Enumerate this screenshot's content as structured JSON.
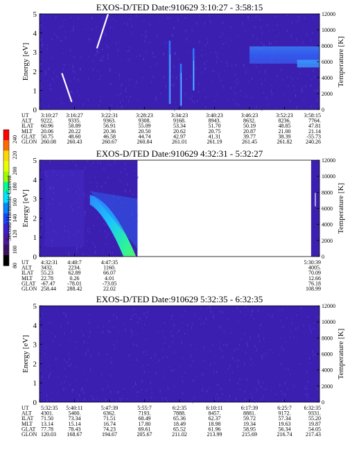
{
  "colorbar": {
    "label": "Second Harmonic Current",
    "ticks": [
      "240",
      "220",
      "200",
      "180",
      "160",
      "140",
      "120",
      "100",
      "80"
    ],
    "colors": [
      "#ff0000",
      "#ff6a00",
      "#ffd700",
      "#e8ff00",
      "#9cff00",
      "#00ff9a",
      "#00e5ff",
      "#0088ff",
      "#1a44ff",
      "#3a20d0",
      "#4a18a0",
      "#3a1060",
      "#000000"
    ]
  },
  "theme": {
    "background": "#3b1fb0",
    "noise": "#5a3ee0",
    "white_trace": "#ffffff"
  },
  "chart_data": [
    {
      "type": "heatmap",
      "title": "EXOS-D/TED   Date:910629  3:10:27 - 3:58:15",
      "ylabel": "Energy [eV]",
      "y2label": "Temperature [K]",
      "ylim": [
        0,
        5
      ],
      "y2lim": [
        0,
        12000
      ],
      "yticks": [
        "0",
        "1",
        "2",
        "3",
        "4",
        "5"
      ],
      "y2ticks": [
        "0",
        "2000",
        "4000",
        "6000",
        "8000",
        "10000",
        "12000"
      ],
      "row_labels": [
        "UT",
        "ALT",
        "ILAT",
        "MLT",
        "GLAT",
        "GLON"
      ],
      "columns": [
        [
          "3:10:27",
          "9222.",
          "60.96",
          "20.06",
          "50.75",
          "260.08"
        ],
        [
          "3:16:27",
          "9335.",
          "58.89",
          "20.22",
          "48.60",
          "260.43"
        ],
        [
          "3:22:31",
          "9363.",
          "56.91",
          "20.36",
          "46.58",
          "260.67"
        ],
        [
          "3:28:23",
          "9308.",
          "55.09",
          "20.50",
          "44.74",
          "260.84"
        ],
        [
          "3:34:23",
          "9168.",
          "53.34",
          "20.62",
          "42.97",
          "261.01"
        ],
        [
          "3:40:23",
          "8943.",
          "51.70",
          "20.75",
          "41.31",
          "261.19"
        ],
        [
          "3:46:23",
          "8632.",
          "50.19",
          "20.87",
          "39.77",
          "261.45"
        ],
        [
          "3:52:23",
          "8236.",
          "48.85",
          "21.00",
          "38.39",
          "261.82"
        ],
        [
          "3:58:15",
          "7764.",
          "47.81",
          "21.14",
          "-55.73",
          "240.26"
        ]
      ],
      "features": [
        {
          "name": "white-trace-low",
          "t": [
            0.08,
            0.115
          ],
          "e": [
            1.9,
            0.4
          ]
        },
        {
          "name": "white-trace-high",
          "t": [
            0.205,
            0.245
          ],
          "e": [
            3.2,
            5.0
          ]
        },
        {
          "name": "spike-1",
          "t": 0.465,
          "e": [
            0.3,
            3.6
          ]
        },
        {
          "name": "spike-2",
          "t": 0.505,
          "e": [
            0.2,
            2.4
          ]
        },
        {
          "name": "spike-3",
          "t": 0.55,
          "e": [
            1.0,
            3.2
          ]
        },
        {
          "name": "band",
          "t": [
            0.75,
            1.0
          ],
          "e": [
            2.4,
            3.3
          ]
        }
      ]
    },
    {
      "type": "heatmap",
      "title": "EXOS-D/TED   Date:910629  4:32:31 - 5:32:27",
      "ylabel": "Energy [eV]",
      "y2label": "Temperature [K]",
      "ylim": [
        0,
        5
      ],
      "y2lim": [
        0,
        12000
      ],
      "yticks": [
        "0",
        "1",
        "2",
        "3",
        "4",
        "5"
      ],
      "y2ticks": [
        "0",
        "2000",
        "4000",
        "6000",
        "8000",
        "10000",
        "12000"
      ],
      "row_labels": [
        "UT",
        "ALT",
        "ILAT",
        "MLT",
        "GLAT",
        "GLON"
      ],
      "columns": [
        [
          "4:32:31",
          "3432.",
          "55.23",
          "22.78",
          "-67.47",
          "258.44"
        ],
        [
          "4:40:7",
          "2234.",
          "62.89",
          "0.26",
          "-78.01",
          "288.42"
        ],
        [
          "4:47:35",
          "1160.",
          "66.07",
          "4.01",
          "-73.05",
          "22.02"
        ],
        [
          "5:30:39",
          "4005.",
          "70.09",
          "12.66",
          "76.18",
          "108.99"
        ]
      ],
      "data_coverage": [
        0.0,
        0.35
      ]
    },
    {
      "type": "heatmap",
      "title": "EXOS-D/TED   Date:910629  5:32:35 - 6:32:35",
      "ylabel": "Energy [eV]",
      "y2label": "Temperature [K]",
      "ylim": [
        0,
        5
      ],
      "y2lim": [
        0,
        12000
      ],
      "yticks": [
        "0",
        "1",
        "2",
        "3",
        "4",
        "5"
      ],
      "y2ticks": [
        "0",
        "2000",
        "4000",
        "6000",
        "8000",
        "10000",
        "12000"
      ],
      "row_labels": [
        "UT",
        "ALT",
        "ILAT",
        "MLT",
        "GLAT",
        "GLON"
      ],
      "columns": [
        [
          "5:32:35",
          "4301.",
          "71.50",
          "13.14",
          "77.78",
          "120.03"
        ],
        [
          "5:40:11",
          "5400.",
          "73.34",
          "15.14",
          "78.43",
          "168.67"
        ],
        [
          "5:47:39",
          "6362.",
          "71.51",
          "16.74",
          "74.23",
          "194.67"
        ],
        [
          "5:55:7",
          "7193.",
          "68.49",
          "17.80",
          "69.61",
          "205.67"
        ],
        [
          "6:2:35",
          "7888.",
          "65.36",
          "18.49",
          "65.52",
          "211.02"
        ],
        [
          "6:10:11",
          "8457.",
          "62.37",
          "18.98",
          "61.96",
          "213.99"
        ],
        [
          "6:17:39",
          "8881.",
          "59.72",
          "19.34",
          "58.95",
          "215.69"
        ],
        [
          "6:25:7",
          "9172.",
          "57.34",
          "19.63",
          "56.34",
          "216.74"
        ],
        [
          "6:32:35",
          "9331.",
          "55.20",
          "19.87",
          "54.05",
          "217.43"
        ]
      ]
    }
  ]
}
